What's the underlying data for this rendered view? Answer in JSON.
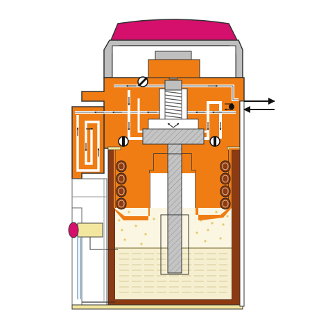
{
  "diagram": {
    "kind": "cutaway-schematic",
    "colors": {
      "cap": "#d4106c",
      "body": "#ef7d14",
      "liquid": "#f6efcf",
      "wall": "#8c3a12",
      "steel": "#bfbfbf",
      "frame": "#333333",
      "airway": "#ffffff",
      "insulation": "#f3e7a0",
      "background": "#ffffff"
    },
    "arrows": {
      "port_outlet": "right",
      "port_inlet": "left"
    },
    "valve_count": 4,
    "coil_count_each_side": 4
  }
}
